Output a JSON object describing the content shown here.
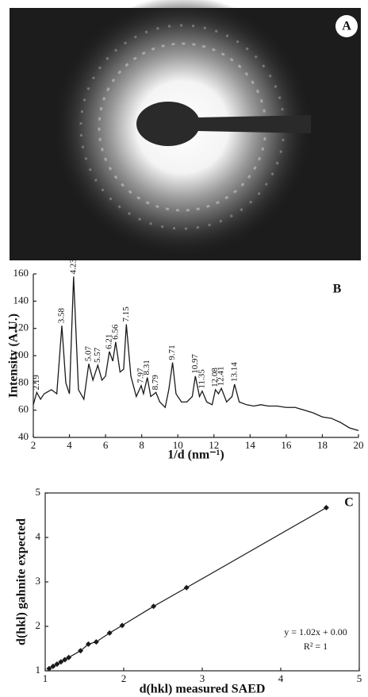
{
  "image": {
    "label": "A"
  },
  "chart_data": [
    {
      "type": "line",
      "label": "B",
      "xlabel": "1/d (nm⁻¹)",
      "ylabel": "Intensity (A.U.)",
      "color": "#1a1a1a",
      "x": [
        2.0,
        2.19,
        2.4,
        2.6,
        3.0,
        3.3,
        3.58,
        3.8,
        4.0,
        4.23,
        4.5,
        4.8,
        5.07,
        5.3,
        5.57,
        5.8,
        6.0,
        6.21,
        6.4,
        6.56,
        6.8,
        7.0,
        7.15,
        7.4,
        7.7,
        7.97,
        8.1,
        8.31,
        8.5,
        8.79,
        9.0,
        9.3,
        9.5,
        9.71,
        9.9,
        10.2,
        10.5,
        10.8,
        10.97,
        11.2,
        11.35,
        11.6,
        11.9,
        12.08,
        12.25,
        12.41,
        12.7,
        13.0,
        13.14,
        13.4,
        13.8,
        14.2,
        14.6,
        15.0,
        15.5,
        16.0,
        16.5,
        17.0,
        17.5,
        18.0,
        18.5,
        19.0,
        19.5,
        20.0
      ],
      "values": [
        64,
        73,
        68,
        72,
        75,
        72,
        122,
        80,
        72,
        158,
        75,
        68,
        94,
        82,
        93,
        82,
        85,
        103,
        96,
        110,
        88,
        90,
        123,
        85,
        70,
        78,
        72,
        84,
        70,
        73,
        66,
        62,
        75,
        95,
        72,
        66,
        66,
        70,
        85,
        70,
        74,
        66,
        64,
        75,
        72,
        76,
        66,
        70,
        79,
        66,
        64,
        63,
        64,
        63,
        63,
        62,
        62,
        60,
        58,
        55,
        54,
        51,
        47,
        45
      ],
      "xlim": [
        2,
        20
      ],
      "ylim": [
        40,
        160
      ],
      "xticks": [
        2,
        4,
        6,
        8,
        10,
        12,
        14,
        16,
        18,
        20
      ],
      "yticks": [
        40,
        60,
        80,
        100,
        120,
        140,
        160
      ],
      "peaks": {
        "x": [
          2.19,
          3.58,
          4.23,
          5.07,
          5.57,
          6.21,
          6.56,
          7.15,
          7.97,
          8.31,
          8.79,
          9.71,
          10.97,
          11.35,
          12.08,
          12.41,
          13.14
        ],
        "y": [
          73,
          122,
          158,
          94,
          93,
          103,
          110,
          123,
          78,
          84,
          73,
          95,
          85,
          74,
          75,
          76,
          79
        ]
      }
    },
    {
      "type": "scatter",
      "label": "C",
      "xlabel": "d(hkl) measured SAED",
      "ylabel": "d(hkl) gahnite expected",
      "color": "#1a1a1a",
      "connect": true,
      "marker": "diamond",
      "x": [
        1.05,
        1.1,
        1.15,
        1.2,
        1.25,
        1.3,
        1.45,
        1.55,
        1.65,
        1.82,
        1.98,
        2.38,
        2.8,
        4.58
      ],
      "values": [
        1.05,
        1.1,
        1.15,
        1.2,
        1.25,
        1.3,
        1.45,
        1.6,
        1.65,
        1.85,
        2.02,
        2.45,
        2.87,
        4.67
      ],
      "xlim": [
        1,
        5
      ],
      "ylim": [
        1,
        5
      ],
      "xticks": [
        1,
        2,
        3,
        4,
        5
      ],
      "yticks": [
        1,
        2,
        3,
        4,
        5
      ],
      "annotations": [
        "y = 1.02x + 0.00",
        "R² = 1"
      ]
    }
  ]
}
